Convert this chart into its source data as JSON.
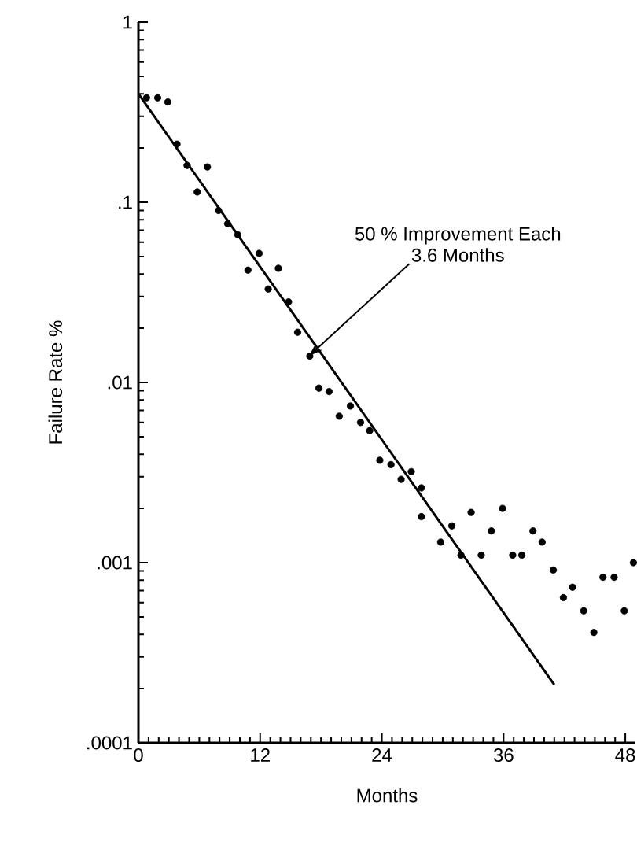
{
  "chart_data": {
    "type": "scatter",
    "xlabel": "Months",
    "ylabel": "Failure Rate  %",
    "log": "y",
    "xlim": [
      0,
      49
    ],
    "ylim": [
      0.0001,
      1
    ],
    "xticks": [
      0,
      12,
      24,
      36,
      48
    ],
    "yticks": [
      {
        "value": 0.0001,
        "label": ".0001"
      },
      {
        "value": 0.001,
        "label": ".001"
      },
      {
        "value": 0.01,
        "label": ".01"
      },
      {
        "value": 0.1,
        "label": ".1"
      },
      1
    ],
    "series": [
      {
        "color": "#000000",
        "marker": "circle",
        "x": [
          0.8,
          1.9,
          2.9,
          3.8,
          4.8,
          5.8,
          6.8,
          7.9,
          8.8,
          9.8,
          10.8,
          11.9,
          12.8,
          13.8,
          14.8,
          15.7,
          16.9,
          17.8,
          18.8,
          19.8,
          20.9,
          21.9,
          22.8,
          23.8,
          24.9,
          25.9,
          26.9,
          27.9,
          27.9,
          29.8,
          30.9,
          31.8,
          32.8,
          33.8,
          34.8,
          35.9,
          36.9,
          37.8,
          38.9,
          39.8,
          40.9,
          41.9,
          42.8,
          43.9,
          44.9,
          45.8,
          46.9,
          47.9,
          48.8
        ],
        "values": [
          0.38,
          0.38,
          0.36,
          0.21,
          0.16,
          0.114,
          0.157,
          0.09,
          0.076,
          0.066,
          0.042,
          0.052,
          0.033,
          0.043,
          0.028,
          0.019,
          0.014,
          0.0093,
          0.0089,
          0.0065,
          0.0074,
          0.006,
          0.0054,
          0.0037,
          0.0035,
          0.0029,
          0.0032,
          0.0026,
          0.0018,
          0.0013,
          0.0016,
          0.0011,
          0.0019,
          0.0011,
          0.0015,
          0.002,
          0.0011,
          0.0011,
          0.0015,
          0.0013,
          0.00091,
          0.00064,
          0.00073,
          0.00054,
          0.00041,
          0.00083,
          0.00083,
          0.00054,
          0.001
        ]
      },
      {
        "type": "line",
        "color": "#000000",
        "marker": "none",
        "x": [
          0,
          41
        ],
        "values": [
          0.4,
          0.00021
        ]
      }
    ],
    "annotations": [
      "50 % Improvement Each",
      {
        "text": "3.6 Months",
        "x": 16.8,
        "y": 0.014
      }
    ]
  }
}
